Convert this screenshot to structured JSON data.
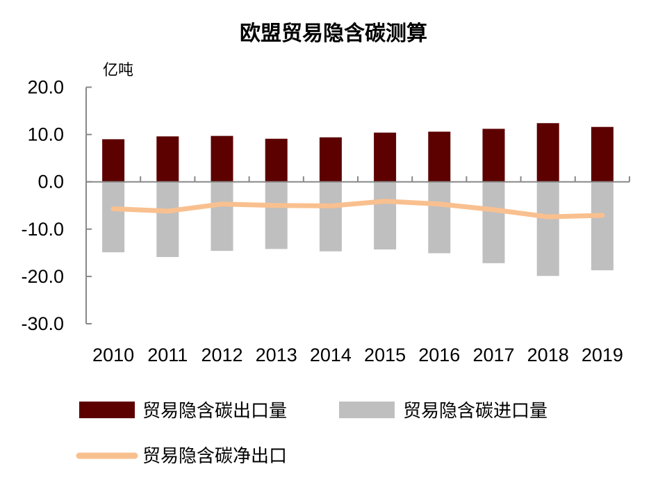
{
  "chart_data": {
    "type": "bar",
    "title": "欧盟贸易隐含碳测算",
    "unit_label": "亿吨",
    "categories": [
      "2010",
      "2011",
      "2012",
      "2013",
      "2014",
      "2015",
      "2016",
      "2017",
      "2018",
      "2019"
    ],
    "ylim": [
      -30,
      20
    ],
    "yticks": [
      "20.0",
      "10.0",
      "0.0",
      "-10.0",
      "-20.0",
      "-30.0"
    ],
    "ytick_values": [
      20,
      10,
      0,
      -10,
      -20,
      -30
    ],
    "legend_position": "bottom",
    "series": [
      {
        "name": "贸易隐含碳出口量",
        "type": "bar",
        "color": "#5c0000",
        "values": [
          9.0,
          9.6,
          9.7,
          9.1,
          9.4,
          10.4,
          10.6,
          11.2,
          12.4,
          11.6
        ]
      },
      {
        "name": "贸易隐含碳进口量",
        "type": "bar",
        "color": "#bfbfbf",
        "values": [
          -14.9,
          -15.9,
          -14.6,
          -14.2,
          -14.7,
          -14.3,
          -15.1,
          -17.2,
          -19.9,
          -18.7
        ]
      },
      {
        "name": "贸易隐含碳净出口",
        "type": "line",
        "color": "#f9c08f",
        "values": [
          -5.7,
          -6.2,
          -4.7,
          -5.0,
          -5.1,
          -4.1,
          -4.7,
          -5.9,
          -7.4,
          -7.1
        ]
      }
    ]
  }
}
